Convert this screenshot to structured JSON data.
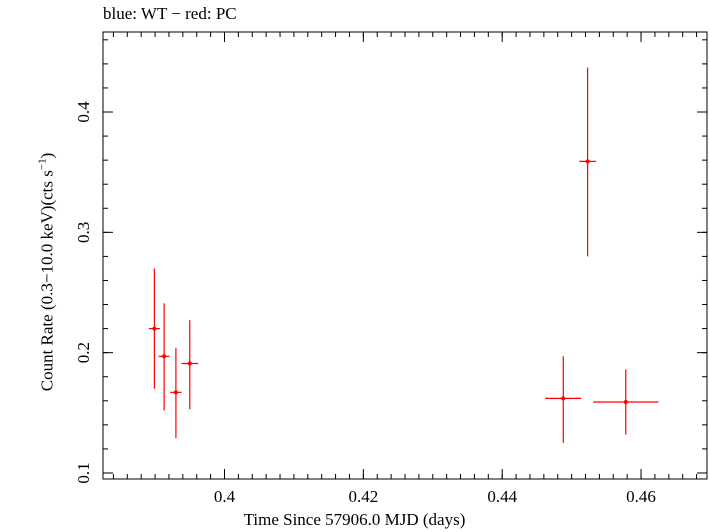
{
  "chart_data": {
    "type": "scatter",
    "title": "blue: WT − red: PC",
    "xlabel": "Time Since 57906.0 MJD (days)",
    "ylabel_main": "Count Rate (0.3−10.0 keV)(cts s",
    "ylabel_sup": "−1",
    "ylabel_end": ")",
    "xlim": [
      0.3825,
      0.4695
    ],
    "ylim": [
      0.095,
      0.4665
    ],
    "x_ticks": [
      0.4,
      0.42,
      0.44,
      0.46
    ],
    "x_tick_labels": [
      "0.4",
      "0.42",
      "0.44",
      "0.46"
    ],
    "y_ticks": [
      0.1,
      0.2,
      0.3,
      0.4
    ],
    "y_tick_labels": [
      "0.1",
      "0.2",
      "0.3",
      "0.4"
    ],
    "x_minor_step": 0.002,
    "y_minor_step": 0.02,
    "grid": false,
    "colors": {
      "PC": "#ff0000",
      "WT": "#0000ff"
    },
    "series": [
      {
        "name": "PC",
        "points": [
          {
            "x": 0.3899,
            "y": 0.22,
            "xerr": 0.0008,
            "yerr": [
              0.05,
              0.05
            ]
          },
          {
            "x": 0.3913,
            "y": 0.197,
            "xerr": 0.0008,
            "yerr": [
              0.045,
              0.044
            ]
          },
          {
            "x": 0.393,
            "y": 0.167,
            "xerr": 0.0008,
            "yerr": [
              0.038,
              0.037
            ]
          },
          {
            "x": 0.395,
            "y": 0.191,
            "xerr": 0.0012,
            "yerr": [
              0.038,
              0.036
            ]
          },
          {
            "x": 0.4488,
            "y": 0.162,
            "xerr": 0.0026,
            "yerr": [
              0.037,
              0.035
            ]
          },
          {
            "x": 0.4523,
            "y": 0.359,
            "xerr": 0.0012,
            "yerr": [
              0.079,
              0.078
            ]
          },
          {
            "x": 0.4578,
            "y": 0.159,
            "xerr": 0.0047,
            "yerr": [
              0.027,
              0.027
            ]
          }
        ]
      }
    ]
  }
}
